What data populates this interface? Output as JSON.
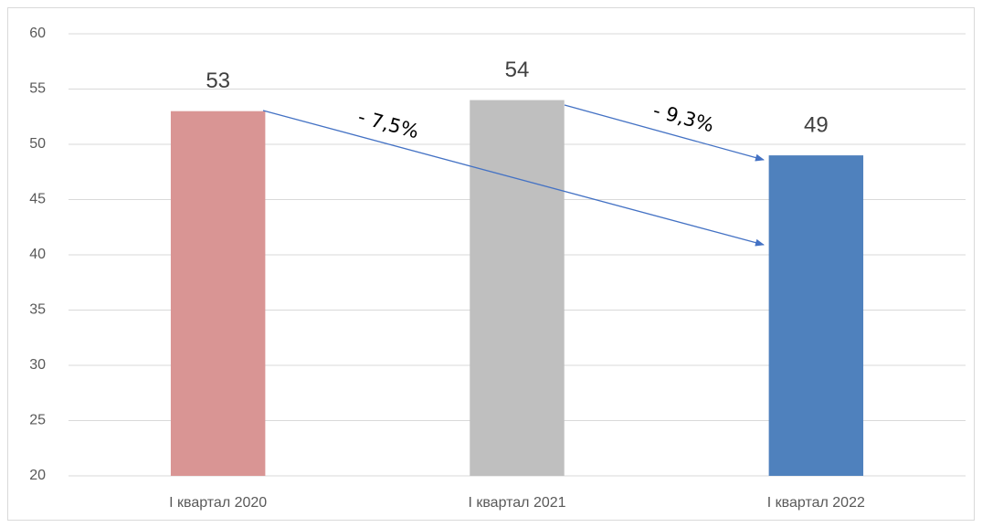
{
  "chart_data": {
    "type": "bar",
    "categories": [
      "I квартал 2020",
      "I квартал 2021",
      "I квартал 2022"
    ],
    "values": [
      53,
      54,
      49
    ],
    "colors": [
      "#d99594",
      "#bfbfbf",
      "#4f81bd"
    ],
    "ylim": [
      20,
      60
    ],
    "yticks": [
      20,
      25,
      30,
      35,
      40,
      45,
      50,
      55,
      60
    ],
    "grid": true,
    "annotations": [
      "- 7,5%",
      "- 9,3%"
    ]
  }
}
